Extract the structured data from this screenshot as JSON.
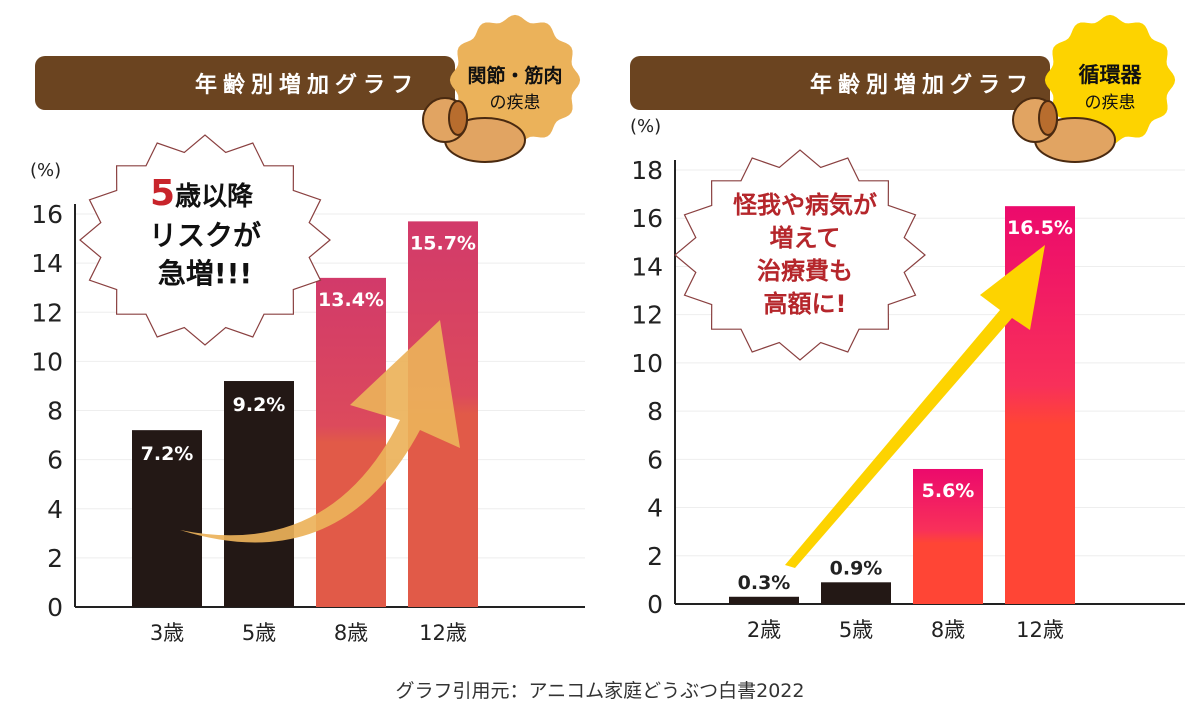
{
  "source_note": "グラフ引用元：アニコム家庭どうぶつ白書2022",
  "colors": {
    "header": "#6b4420",
    "dark_bar": "#231815",
    "left_red_top": "#d23a6a",
    "left_red_bottom": "#e15a48",
    "right_red_top": "#ec0a6c",
    "right_red_bottom": "#ff4535",
    "badge_left": "#ebb25a",
    "badge_right": "#fdd300",
    "arrow_left": "#ebb25a",
    "arrow_right": "#fdd300",
    "callout_text_left": "#1a1a1a",
    "callout_text_right": "#b5262b",
    "callout_five": "#c8242b"
  },
  "chart_data": [
    {
      "type": "bar",
      "title": "年齢別増加グラフ",
      "badge": [
        "関節・筋肉",
        "の疾患"
      ],
      "callout": {
        "highlight": "5",
        "lines": [
          "歳以降",
          "リスクが",
          "急増!!!"
        ]
      },
      "ylabel": "(%)",
      "ylim": [
        0,
        16
      ],
      "yticks": [
        0,
        2,
        4,
        6,
        8,
        10,
        12,
        14,
        16
      ],
      "categories": [
        "3歳",
        "5歳",
        "8歳",
        "12歳"
      ],
      "values": [
        7.2,
        9.2,
        13.4,
        15.7
      ],
      "labels": [
        "7.2%",
        "9.2%",
        "13.4%",
        "15.7%"
      ],
      "highlighted": [
        false,
        false,
        true,
        true
      ]
    },
    {
      "type": "bar",
      "title": "年齢別増加グラフ",
      "badge": [
        "循環器",
        "の疾患"
      ],
      "callout": {
        "lines": [
          "怪我や病気が",
          "増えて",
          "治療費も",
          "高額に!"
        ]
      },
      "ylabel": "(%)",
      "ylim": [
        0,
        18
      ],
      "yticks": [
        0,
        2,
        4,
        6,
        8,
        10,
        12,
        14,
        16,
        18
      ],
      "categories": [
        "2歳",
        "5歳",
        "8歳",
        "12歳"
      ],
      "values": [
        0.3,
        0.9,
        5.6,
        16.5
      ],
      "labels": [
        "0.3%",
        "0.9%",
        "5.6%",
        "16.5%"
      ],
      "highlighted": [
        false,
        false,
        true,
        true
      ]
    }
  ]
}
